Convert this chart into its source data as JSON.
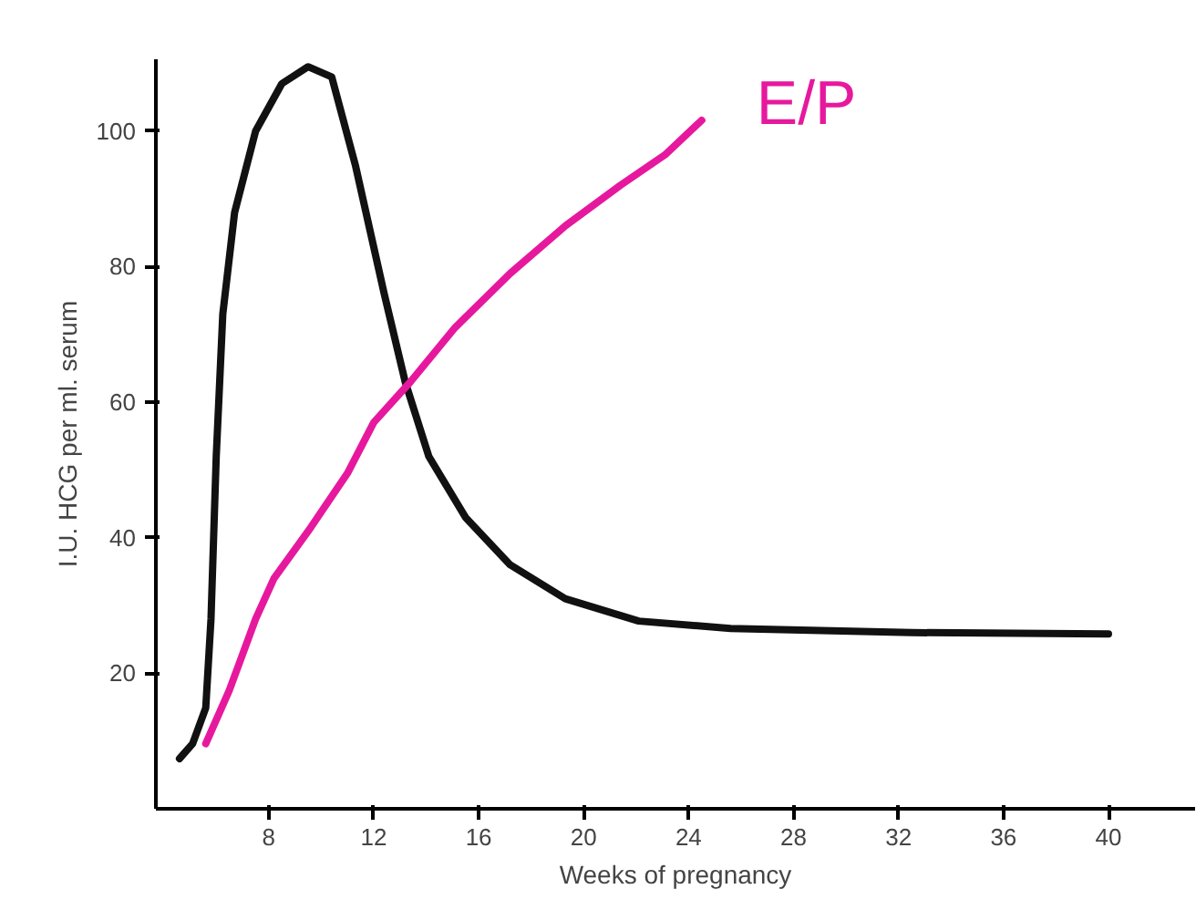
{
  "chart_data": {
    "type": "line",
    "xlabel": "Weeks of pregnancy",
    "ylabel": "I.U. HCG per ml. serum",
    "xlim": [
      3.7,
      43.3
    ],
    "ylim": [
      0,
      110.6
    ],
    "xticks": [
      8,
      12,
      16,
      20,
      24,
      28,
      32,
      36,
      40
    ],
    "yticks": [
      20,
      40,
      60,
      80,
      100
    ],
    "grid": false,
    "marker": "none",
    "line_style": "solid",
    "series": [
      {
        "color": "#111111",
        "x": [
          4.6,
          5.1,
          5.6,
          5.8,
          6.0,
          6.25,
          6.7,
          7.5,
          8.5,
          9.5,
          10.4,
          11.3,
          12.4,
          13.2,
          14.1,
          15.5,
          17.2,
          19.3,
          22.1,
          25.6,
          32.5,
          40
        ],
        "values": [
          7.4,
          9.6,
          14.9,
          28,
          52,
          73,
          88,
          100,
          107,
          109.5,
          108,
          95,
          76,
          63,
          52,
          43,
          36,
          31,
          27.7,
          26.6,
          26,
          25.8
        ]
      },
      {
        "name": "E/P",
        "color": "#e6199e",
        "x": [
          5.6,
          6.5,
          7.5,
          8.2,
          9.6,
          11.0,
          12.0,
          13.4,
          15.1,
          17.2,
          19.3,
          21.4,
          23.1,
          24.5
        ],
        "values": [
          9.6,
          17.5,
          28,
          34,
          41.5,
          49.5,
          57,
          63,
          71,
          79,
          86,
          92,
          96.5,
          101.6
        ]
      }
    ]
  }
}
